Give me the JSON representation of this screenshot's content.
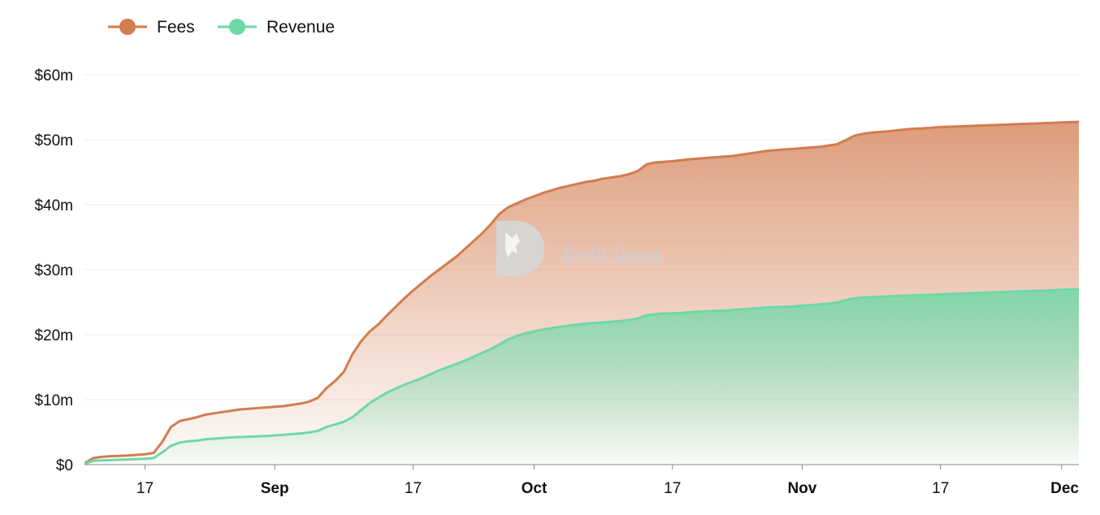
{
  "chart_data": {
    "type": "area",
    "watermark": "DefiLlama",
    "legend": {
      "placement": "top-left",
      "entries": [
        {
          "name": "Fees",
          "color": "#d27c4f"
        },
        {
          "name": "Revenue",
          "color": "#6fd8a8"
        }
      ]
    },
    "x_axis": {
      "ticks": [
        {
          "label": "17",
          "day": 3,
          "bold": false
        },
        {
          "label": "Sep",
          "day": 18,
          "bold": true
        },
        {
          "label": "17",
          "day": 34,
          "bold": false
        },
        {
          "label": "Oct",
          "day": 48,
          "bold": true
        },
        {
          "label": "17",
          "day": 64,
          "bold": false
        },
        {
          "label": "Nov",
          "day": 79,
          "bold": true
        },
        {
          "label": "17",
          "day": 95,
          "bold": false
        },
        {
          "label": "Dec",
          "day": 109,
          "bold": true
        }
      ]
    },
    "y_axis": {
      "ylim": [
        0,
        60
      ],
      "unit": "$m",
      "ticks": [
        {
          "label": "$0",
          "value": 0
        },
        {
          "label": "$10m",
          "value": 10
        },
        {
          "label": "$20m",
          "value": 20
        },
        {
          "label": "$30m",
          "value": 30
        },
        {
          "label": "$40m",
          "value": 40
        },
        {
          "label": "$50m",
          "value": 50
        },
        {
          "label": "$60m",
          "value": 60
        }
      ],
      "grid": true
    },
    "xlim": [
      -4,
      111
    ],
    "x": [
      -4,
      -3,
      -2,
      -1,
      0,
      1,
      2,
      3,
      4,
      5,
      6,
      7,
      8,
      9,
      10,
      11,
      12,
      13,
      14,
      15,
      16,
      17,
      18,
      19,
      20,
      21,
      22,
      23,
      24,
      25,
      26,
      27,
      28,
      29,
      30,
      31,
      32,
      33,
      34,
      35,
      36,
      37,
      38,
      39,
      40,
      41,
      42,
      43,
      44,
      45,
      46,
      47,
      48,
      49,
      50,
      51,
      52,
      53,
      54,
      55,
      56,
      57,
      58,
      59,
      60,
      61,
      62,
      63,
      64,
      65,
      66,
      67,
      68,
      69,
      70,
      71,
      72,
      73,
      74,
      75,
      76,
      77,
      78,
      79,
      80,
      81,
      82,
      83,
      84,
      85,
      86,
      87,
      88,
      89,
      90,
      91,
      92,
      93,
      94,
      95,
      96,
      97,
      98,
      99,
      100,
      101,
      102,
      103,
      104,
      105,
      106,
      107,
      108,
      109,
      110,
      111
    ],
    "series": [
      {
        "name": "Fees",
        "values": [
          0.2,
          1.0,
          1.2,
          1.3,
          1.35,
          1.4,
          1.5,
          1.6,
          1.8,
          3.5,
          5.8,
          6.7,
          7.0,
          7.3,
          7.7,
          7.9,
          8.1,
          8.3,
          8.5,
          8.6,
          8.7,
          8.8,
          8.9,
          9.0,
          9.2,
          9.4,
          9.7,
          10.3,
          11.8,
          12.9,
          14.3,
          17.0,
          19.0,
          20.5,
          21.6,
          23.0,
          24.3,
          25.6,
          26.8,
          27.9,
          29.0,
          30.0,
          31.0,
          32.0,
          33.2,
          34.4,
          35.6,
          37.0,
          38.6,
          39.6,
          40.2,
          40.8,
          41.3,
          41.8,
          42.2,
          42.6,
          42.9,
          43.2,
          43.5,
          43.7,
          44.0,
          44.2,
          44.4,
          44.7,
          45.2,
          46.2,
          46.5,
          46.6,
          46.7,
          46.85,
          47.0,
          47.1,
          47.2,
          47.3,
          47.4,
          47.5,
          47.7,
          47.9,
          48.1,
          48.3,
          48.4,
          48.5,
          48.6,
          48.7,
          48.8,
          48.9,
          49.1,
          49.3,
          49.9,
          50.6,
          50.9,
          51.1,
          51.2,
          51.3,
          51.45,
          51.6,
          51.7,
          51.75,
          51.85,
          51.95,
          52.0,
          52.05,
          52.1,
          52.15,
          52.2,
          52.25,
          52.3,
          52.35,
          52.4,
          52.45,
          52.5,
          52.55,
          52.6,
          52.65,
          52.7,
          52.75
        ],
        "color": "#d27c4f"
      },
      {
        "name": "Revenue",
        "values": [
          0.1,
          0.6,
          0.65,
          0.7,
          0.75,
          0.8,
          0.85,
          0.9,
          1.0,
          1.9,
          2.9,
          3.4,
          3.6,
          3.7,
          3.9,
          4.0,
          4.1,
          4.2,
          4.25,
          4.3,
          4.35,
          4.4,
          4.5,
          4.6,
          4.7,
          4.8,
          4.95,
          5.2,
          5.8,
          6.2,
          6.6,
          7.3,
          8.4,
          9.5,
          10.3,
          11.1,
          11.7,
          12.3,
          12.8,
          13.3,
          13.9,
          14.5,
          15.0,
          15.5,
          16.0,
          16.6,
          17.2,
          17.8,
          18.5,
          19.3,
          19.8,
          20.2,
          20.5,
          20.8,
          21.0,
          21.2,
          21.4,
          21.55,
          21.7,
          21.8,
          21.9,
          22.0,
          22.1,
          22.25,
          22.5,
          23.0,
          23.15,
          23.25,
          23.3,
          23.35,
          23.45,
          23.55,
          23.6,
          23.65,
          23.7,
          23.8,
          23.9,
          24.0,
          24.1,
          24.2,
          24.25,
          24.3,
          24.35,
          24.45,
          24.55,
          24.65,
          24.75,
          24.95,
          25.3,
          25.6,
          25.7,
          25.8,
          25.85,
          25.9,
          25.95,
          26.0,
          26.05,
          26.1,
          26.15,
          26.2,
          26.25,
          26.3,
          26.35,
          26.4,
          26.45,
          26.5,
          26.55,
          26.6,
          26.65,
          26.7,
          26.75,
          26.8,
          26.85,
          26.9,
          26.95,
          27.0
        ],
        "color": "#6fd8a8"
      }
    ]
  }
}
